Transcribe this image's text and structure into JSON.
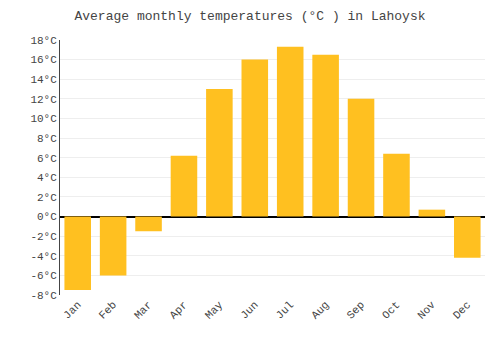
{
  "chart_data": {
    "type": "bar",
    "title": "Average monthly temperatures (°C ) in Lahoysk",
    "categories": [
      "Jan",
      "Feb",
      "Mar",
      "Apr",
      "May",
      "Jun",
      "Jul",
      "Aug",
      "Sep",
      "Oct",
      "Nov",
      "Dec"
    ],
    "values": [
      -7.5,
      -6.0,
      -1.5,
      6.2,
      13.0,
      16.0,
      17.3,
      16.5,
      12.0,
      6.4,
      0.7,
      -4.2
    ],
    "color": "#FFC020",
    "ylim": [
      -8,
      18
    ],
    "yticks": [
      {
        "value": -8,
        "label": "-8°C"
      },
      {
        "value": -6,
        "label": "-6°C"
      },
      {
        "value": -4,
        "label": "-4°C"
      },
      {
        "value": -2,
        "label": "-2°C"
      },
      {
        "value": 0,
        "label": "0°C"
      },
      {
        "value": 2,
        "label": "2°C"
      },
      {
        "value": 4,
        "label": "4°C"
      },
      {
        "value": 6,
        "label": "6°C"
      },
      {
        "value": 8,
        "label": "8°C"
      },
      {
        "value": 10,
        "label": "10°C"
      },
      {
        "value": 12,
        "label": "12°C"
      },
      {
        "value": 14,
        "label": "14°C"
      },
      {
        "value": 16,
        "label": "16°C"
      },
      {
        "value": 18,
        "label": "18°C"
      }
    ],
    "grid": true
  }
}
